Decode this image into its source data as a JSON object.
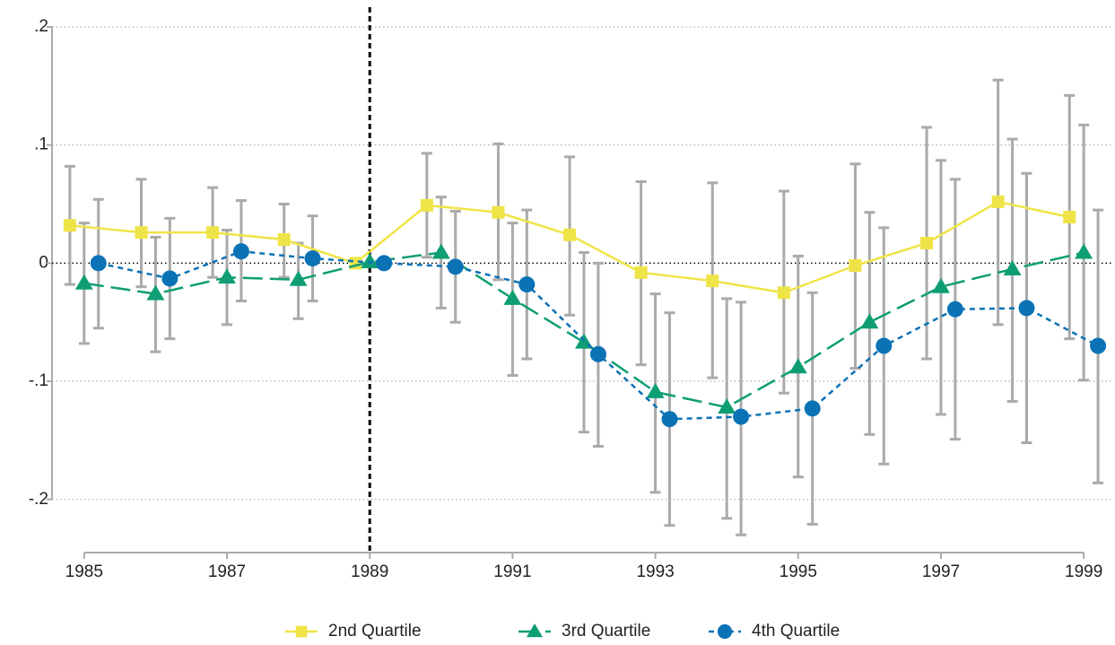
{
  "chart_data": {
    "type": "line",
    "xlim": [
      1984.55,
      1999.4
    ],
    "xticks": [
      1985,
      1987,
      1989,
      1991,
      1993,
      1995,
      1997,
      1999
    ],
    "ylim": [
      -0.245,
      0.2
    ],
    "yticks": [
      {
        "value": 0.2,
        "label": ".2"
      },
      {
        "value": 0.1,
        "label": ".1"
      },
      0,
      {
        "value": -0.1,
        "label": "-.1"
      },
      {
        "value": -0.2,
        "label": "-.2"
      }
    ],
    "grid": true,
    "vline": 1989,
    "legend": "bottom",
    "series": [
      {
        "name": "2nd Quartile",
        "color": "#efe447",
        "dash": "none",
        "marker": "square",
        "x": [
          1984.8,
          1985.8,
          1986.8,
          1987.8,
          1988.8,
          1989.8,
          1990.8,
          1991.8,
          1992.8,
          1993.8,
          1994.8,
          1995.8,
          1996.8,
          1997.8,
          1998.8
        ],
        "values": [
          0.032,
          0.026,
          0.026,
          0.02,
          0,
          0.049,
          0.043,
          0.024,
          -0.008,
          -0.015,
          -0.025,
          -0.002,
          0.017,
          0.052,
          0.039
        ],
        "ci_low": [
          -0.018,
          -0.02,
          -0.012,
          -0.012,
          null,
          0.005,
          -0.014,
          -0.044,
          -0.086,
          -0.097,
          -0.11,
          -0.089,
          -0.081,
          -0.052,
          -0.064
        ],
        "ci_high": [
          0.082,
          0.071,
          0.064,
          0.05,
          null,
          0.093,
          0.101,
          0.09,
          0.069,
          0.068,
          0.061,
          0.084,
          0.115,
          0.155,
          0.142
        ]
      },
      {
        "name": "3rd Quartile",
        "color": "#0f9e74",
        "dash": "22 8",
        "marker": "triangle",
        "x": [
          1985,
          1986,
          1987,
          1988,
          1989,
          1990,
          1991,
          1992,
          1993,
          1994,
          1995,
          1996,
          1997,
          1998,
          1999
        ],
        "values": [
          -0.017,
          -0.026,
          -0.012,
          -0.014,
          0.001,
          0.009,
          -0.03,
          -0.067,
          -0.109,
          -0.122,
          -0.088,
          -0.05,
          -0.02,
          -0.005,
          0.009
        ],
        "ci_low": [
          -0.068,
          -0.075,
          -0.052,
          -0.047,
          null,
          -0.038,
          -0.095,
          -0.143,
          -0.194,
          -0.216,
          -0.181,
          -0.145,
          -0.128,
          -0.117,
          -0.099
        ],
        "ci_high": [
          0.034,
          0.022,
          0.028,
          0.017,
          null,
          0.056,
          0.034,
          0.009,
          -0.026,
          -0.03,
          0.006,
          0.043,
          0.087,
          0.105,
          0.117
        ]
      },
      {
        "name": "4th Quartile",
        "color": "#0b72b6",
        "dash": "6 5",
        "marker": "circle",
        "x": [
          1985.2,
          1986.2,
          1987.2,
          1988.2,
          1989.2,
          1990.2,
          1991.2,
          1992.2,
          1993.2,
          1994.2,
          1995.2,
          1996.2,
          1997.2,
          1998.2,
          1999.2
        ],
        "values": [
          0,
          -0.013,
          0.01,
          0.004,
          0,
          -0.003,
          -0.018,
          -0.077,
          -0.132,
          -0.13,
          -0.123,
          -0.07,
          -0.039,
          -0.038,
          -0.07
        ],
        "ci_low": [
          -0.055,
          -0.064,
          -0.032,
          -0.032,
          null,
          -0.05,
          -0.081,
          -0.155,
          -0.222,
          -0.23,
          -0.221,
          -0.17,
          -0.149,
          -0.152,
          -0.186
        ],
        "ci_high": [
          0.054,
          0.038,
          0.053,
          0.04,
          null,
          0.044,
          0.045,
          0.0,
          -0.042,
          -0.033,
          -0.025,
          0.03,
          0.071,
          0.076,
          0.045
        ]
      }
    ]
  }
}
